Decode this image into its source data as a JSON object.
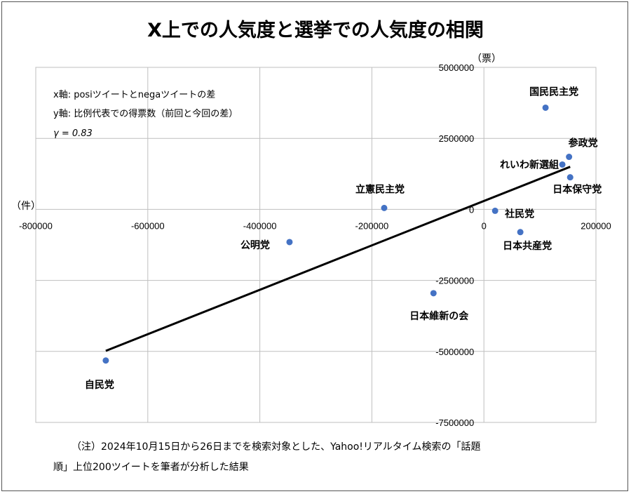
{
  "chart_data": {
    "type": "scatter",
    "title": "X上での人気度と選挙での人気度の相関",
    "xlabel": "（件）",
    "ylabel": "（票）",
    "xlim": [
      -800000,
      200000
    ],
    "ylim": [
      -7500000,
      5000000
    ],
    "x_ticks": [
      -800000,
      -600000,
      -400000,
      -200000,
      0,
      200000
    ],
    "y_ticks": [
      5000000,
      2500000,
      0,
      -2500000,
      -5000000,
      -7500000
    ],
    "grid": true,
    "marker_color": "#4472C4",
    "trendline_color": "#000000",
    "points": [
      {
        "name": "国民民主党",
        "x": 110000,
        "y": 3580000
      },
      {
        "name": "参政党",
        "x": 152000,
        "y": 1850000
      },
      {
        "name": "れいわ新選組",
        "x": 140000,
        "y": 1580000
      },
      {
        "name": "日本保守党",
        "x": 154000,
        "y": 1130000
      },
      {
        "name": "立憲民主党",
        "x": -178000,
        "y": 50000
      },
      {
        "name": "社民党",
        "x": 20000,
        "y": -50000
      },
      {
        "name": "日本共産党",
        "x": 65000,
        "y": -800000
      },
      {
        "name": "公明党",
        "x": -347000,
        "y": -1150000
      },
      {
        "name": "日本維新の会",
        "x": -90000,
        "y": -2950000
      },
      {
        "name": "自民党",
        "x": -675000,
        "y": -5320000
      }
    ],
    "trendline": {
      "x": [
        -675000,
        154000
      ],
      "y": [
        -4980000,
        1500000
      ]
    },
    "annotations": [
      "x軸: posiツイートとnegaツイートの差",
      "y軸: 比例代表での得票数（前回と今回の差）",
      "γ = 0.83"
    ]
  },
  "footnote": [
    "（注）2024年10月15日から26日までを検索対象とした、Yahoo!リアルタイム検索の「話題",
    "順」上位200ツイートを筆者が分析した結果"
  ]
}
